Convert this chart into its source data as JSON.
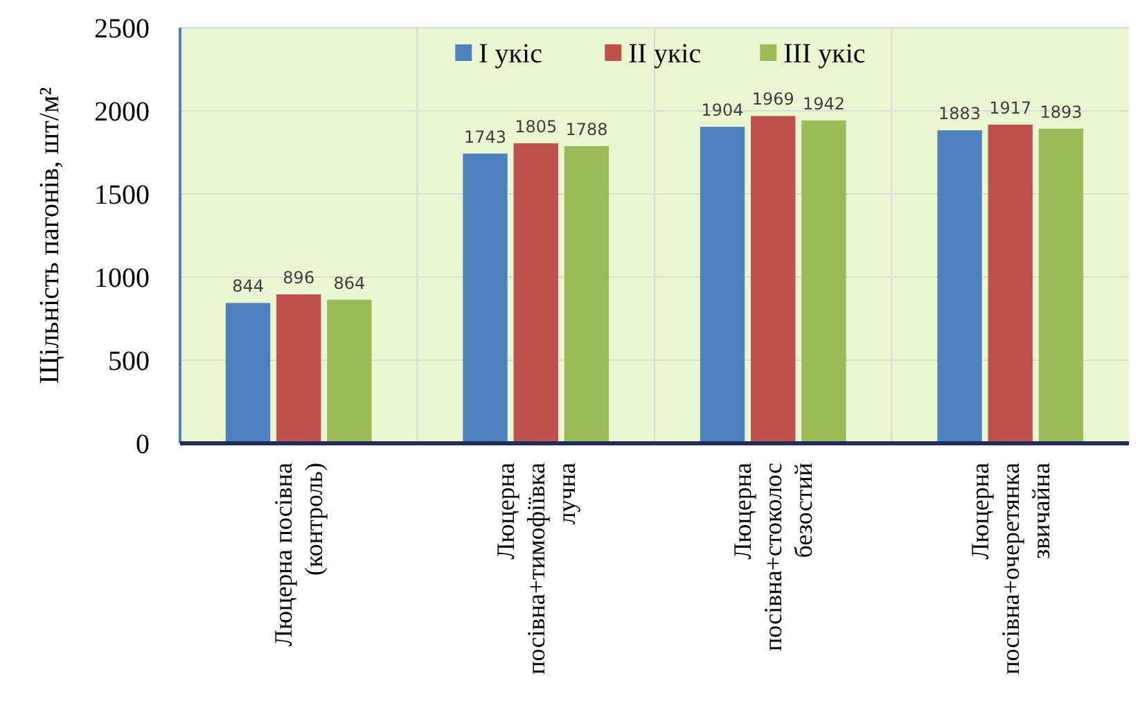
{
  "chart_data": {
    "type": "bar",
    "categories": [
      "Люцерна посівна\n(контроль)",
      "Люцерна\nпосівна+тимофіївка\nлучна",
      "Люцерна\nпосівна+стоколос\nбезостий",
      "Люцерна\nпосівна+очеретянка\nзвичайна"
    ],
    "series": [
      {
        "name": "I укіс",
        "color": "#4f81bd",
        "values": [
          844,
          1743,
          1904,
          1883
        ]
      },
      {
        "name": "II укіс",
        "color": "#c0504d",
        "values": [
          896,
          1805,
          1969,
          1917
        ]
      },
      {
        "name": "III укіс",
        "color": "#9bbb59",
        "values": [
          864,
          1788,
          1942,
          1893
        ]
      }
    ],
    "ylabel": "Щільність пагонів, шт/м²",
    "ylim": [
      0,
      2500
    ],
    "yticks": [
      0,
      500,
      1000,
      1500,
      2000,
      2500
    ],
    "grid": true,
    "legend": "top",
    "data_labels": true
  }
}
